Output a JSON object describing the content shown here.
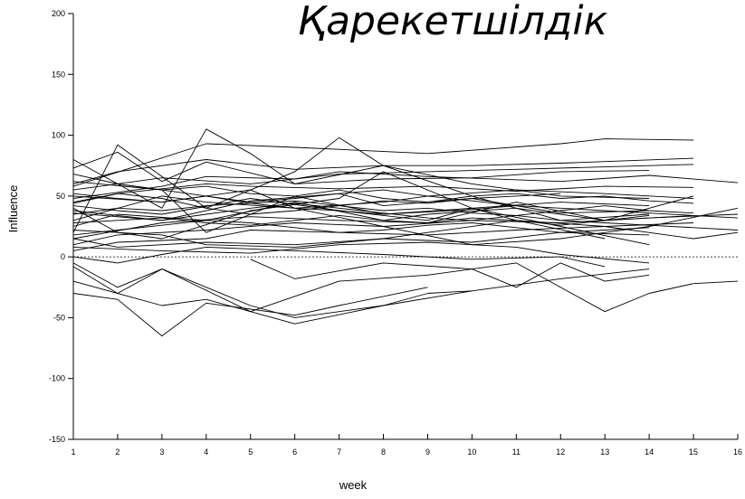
{
  "chart_data": {
    "type": "line",
    "title": "Қарекетшілдік",
    "xlabel": "week",
    "ylabel": "Influence",
    "xlim": [
      1,
      16
    ],
    "ylim": [
      -150,
      200
    ],
    "x_ticks": [
      1,
      2,
      3,
      4,
      5,
      6,
      7,
      8,
      9,
      10,
      11,
      12,
      13,
      14,
      15,
      16
    ],
    "y_ticks": [
      -150,
      -100,
      -50,
      0,
      50,
      100,
      150,
      200
    ],
    "reference_line": {
      "y": 0,
      "style": "dashed"
    },
    "grid": false,
    "legend": "none",
    "line_color": "#000000",
    "series": [
      {
        "x": [
          1,
          4,
          6,
          9,
          12,
          13,
          15
        ],
        "values": [
          58,
          93,
          90,
          85,
          93,
          97,
          96
        ]
      },
      {
        "x": [
          1,
          2,
          4,
          6,
          8,
          10,
          12,
          15
        ],
        "values": [
          60,
          70,
          80,
          72,
          75,
          75,
          77,
          81
        ]
      },
      {
        "x": [
          1,
          3,
          5,
          7,
          9,
          11,
          13,
          15
        ],
        "values": [
          55,
          65,
          60,
          68,
          70,
          72,
          74,
          76
        ]
      },
      {
        "x": [
          1,
          2,
          3,
          4,
          6,
          8,
          10,
          12,
          14
        ],
        "values": [
          73,
          86,
          62,
          78,
          60,
          64,
          65,
          70,
          71
        ]
      },
      {
        "x": [
          1,
          3,
          4,
          6,
          7,
          9,
          12,
          14,
          16
        ],
        "values": [
          48,
          58,
          66,
          64,
          70,
          66,
          62,
          67,
          61
        ]
      },
      {
        "x": [
          1,
          2,
          4,
          5,
          7,
          9,
          11,
          13,
          15
        ],
        "values": [
          44,
          52,
          60,
          58,
          56,
          58,
          54,
          58,
          57
        ]
      },
      {
        "x": [
          1,
          2,
          3,
          4,
          5,
          6,
          8,
          10,
          12,
          14
        ],
        "values": [
          80,
          60,
          40,
          105,
          85,
          60,
          75,
          60,
          50,
          48
        ]
      },
      {
        "x": [
          1,
          2,
          4,
          6,
          7,
          8,
          10,
          11,
          13,
          15
        ],
        "values": [
          20,
          92,
          40,
          70,
          98,
          75,
          50,
          40,
          30,
          50
        ]
      },
      {
        "x": [
          1,
          3,
          4,
          6,
          8,
          9,
          11,
          13,
          15
        ],
        "values": [
          30,
          50,
          45,
          40,
          45,
          50,
          55,
          52,
          48
        ]
      },
      {
        "x": [
          1,
          2,
          3,
          5,
          7,
          9,
          10,
          12,
          14
        ],
        "values": [
          42,
          38,
          35,
          48,
          38,
          30,
          40,
          45,
          42
        ]
      },
      {
        "x": [
          1,
          3,
          5,
          7,
          8,
          10,
          12,
          14
        ],
        "values": [
          36,
          30,
          46,
          52,
          42,
          48,
          36,
          38
        ]
      },
      {
        "x": [
          1,
          2,
          4,
          6,
          8,
          9,
          11,
          12,
          14
        ],
        "values": [
          25,
          35,
          30,
          45,
          30,
          35,
          40,
          30,
          35
        ]
      },
      {
        "x": [
          1,
          3,
          5,
          7,
          9,
          11,
          13,
          15
        ],
        "values": [
          15,
          28,
          33,
          30,
          28,
          45,
          30,
          34
        ]
      },
      {
        "x": [
          1,
          2,
          4,
          6,
          8,
          10,
          12,
          14,
          16
        ],
        "values": [
          10,
          18,
          22,
          28,
          25,
          30,
          28,
          32,
          35
        ]
      },
      {
        "x": [
          1,
          2,
          4,
          5,
          7,
          9,
          11,
          13,
          15
        ],
        "values": [
          5,
          12,
          15,
          22,
          20,
          18,
          22,
          25,
          28
        ]
      },
      {
        "x": [
          1,
          3,
          4,
          6,
          8,
          10,
          11,
          13,
          15,
          16
        ],
        "values": [
          62,
          55,
          20,
          50,
          35,
          40,
          30,
          25,
          15,
          20
        ]
      },
      {
        "x": [
          1,
          3,
          5,
          6,
          8,
          10,
          12,
          14,
          16
        ],
        "values": [
          50,
          45,
          55,
          40,
          25,
          10,
          15,
          25,
          40
        ]
      },
      {
        "x": [
          1,
          2,
          3,
          5,
          7,
          8,
          10,
          12,
          14
        ],
        "values": [
          40,
          20,
          15,
          38,
          48,
          70,
          40,
          25,
          10
        ]
      },
      {
        "x": [
          1,
          3,
          4,
          6,
          8,
          9,
          11,
          13
        ],
        "values": [
          22,
          18,
          10,
          8,
          15,
          20,
          30,
          15
        ]
      },
      {
        "x": [
          1,
          2,
          4,
          6,
          8,
          10,
          12,
          14
        ],
        "values": [
          15,
          8,
          12,
          10,
          15,
          12,
          20,
          18
        ]
      },
      {
        "x": [
          1,
          3,
          5,
          7,
          9,
          11,
          12,
          14
        ],
        "values": [
          8,
          5,
          3,
          10,
          12,
          8,
          2,
          -5
        ]
      },
      {
        "x": [
          1,
          2,
          3,
          4,
          6,
          8,
          10,
          12,
          13
        ],
        "values": [
          0,
          -5,
          2,
          8,
          5,
          2,
          -2,
          0,
          -8
        ]
      },
      {
        "x": [
          1,
          2,
          3,
          5,
          6,
          8,
          10,
          12,
          14
        ],
        "values": [
          -5,
          -25,
          -10,
          -40,
          -50,
          -40,
          -28,
          -18,
          -10
        ]
      },
      {
        "x": [
          1,
          3,
          4,
          5,
          6,
          8,
          9,
          10
        ],
        "values": [
          -20,
          -40,
          -35,
          -45,
          -55,
          -40,
          -30,
          -28
        ]
      },
      {
        "x": [
          1,
          2,
          3,
          4,
          6,
          7,
          9
        ],
        "values": [
          -30,
          -35,
          -65,
          -38,
          -48,
          -40,
          -25
        ]
      },
      {
        "x": [
          1,
          2,
          3,
          5,
          7,
          9,
          11,
          13,
          14,
          15,
          16
        ],
        "values": [
          -8,
          -30,
          -10,
          -45,
          -20,
          -15,
          -5,
          -45,
          -30,
          -22,
          -20
        ]
      },
      {
        "x": [
          5,
          6,
          8,
          10,
          11,
          12,
          13,
          14
        ],
        "values": [
          -2,
          -18,
          -5,
          -10,
          -25,
          -5,
          -20,
          -15
        ]
      },
      {
        "x": [
          1,
          2,
          3,
          4,
          5,
          6,
          7,
          8,
          9,
          10,
          11,
          12,
          13,
          14,
          15,
          16
        ],
        "values": [
          52,
          48,
          45,
          50,
          44,
          46,
          42,
          38,
          40,
          36,
          34,
          30,
          28,
          26,
          24,
          22
        ]
      },
      {
        "x": [
          1,
          2,
          3,
          4,
          5,
          6,
          7,
          8,
          9,
          10,
          11,
          12,
          13,
          14,
          15,
          16
        ],
        "values": [
          35,
          40,
          38,
          42,
          44,
          40,
          38,
          35,
          37,
          39,
          42,
          40,
          38,
          36,
          34,
          32
        ]
      },
      {
        "x": [
          1,
          2,
          3,
          4,
          5,
          6,
          7,
          8,
          9,
          10,
          11,
          12,
          13,
          14,
          15
        ],
        "values": [
          68,
          60,
          55,
          58,
          52,
          50,
          55,
          48,
          45,
          50,
          52,
          48,
          50,
          46,
          44
        ]
      },
      {
        "x": [
          1,
          2,
          3,
          4,
          5,
          6,
          7,
          8,
          9,
          10,
          11,
          12,
          13,
          14
        ],
        "values": [
          28,
          30,
          32,
          28,
          26,
          30,
          34,
          30,
          28,
          32,
          30,
          26,
          30,
          34
        ]
      },
      {
        "x": [
          1,
          2,
          3,
          4,
          5,
          6,
          7,
          8,
          9,
          10,
          11,
          12
        ],
        "values": [
          45,
          52,
          48,
          40,
          35,
          38,
          42,
          46,
          44,
          48,
          50,
          52
        ]
      },
      {
        "x": [
          1,
          2,
          3,
          4,
          5,
          6,
          7,
          8,
          9,
          10,
          11,
          12,
          13,
          14
        ],
        "values": [
          18,
          22,
          26,
          30,
          28,
          24,
          20,
          22,
          26,
          28,
          24,
          20,
          22,
          24
        ]
      },
      {
        "x": [
          2,
          3,
          4,
          5,
          6,
          7,
          8,
          9,
          10,
          11
        ],
        "values": [
          60,
          55,
          50,
          45,
          48,
          52,
          55,
          50,
          46,
          42
        ]
      },
      {
        "x": [
          1,
          2,
          3,
          4,
          5,
          6,
          7,
          8,
          9,
          10,
          11,
          12,
          13,
          14,
          15
        ],
        "values": [
          38,
          34,
          30,
          35,
          40,
          44,
          40,
          36,
          32,
          30,
          34,
          38,
          42,
          38,
          36
        ]
      }
    ]
  }
}
